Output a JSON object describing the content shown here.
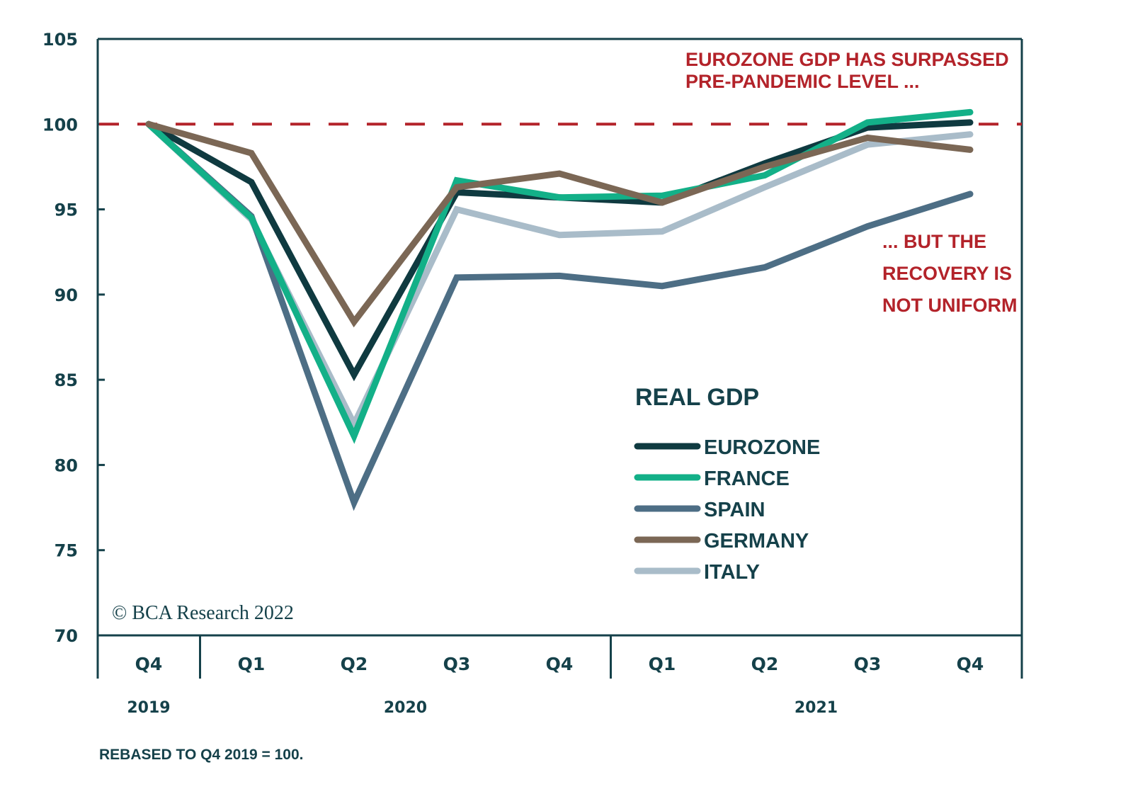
{
  "chart_data": {
    "type": "line",
    "title": "REAL GDP",
    "xlabel": "",
    "ylabel": "",
    "ylim": [
      70,
      105
    ],
    "yticks": [
      70,
      75,
      80,
      85,
      90,
      95,
      100,
      105
    ],
    "grid": false,
    "x": [
      "Q4",
      "Q1",
      "Q2",
      "Q3",
      "Q4",
      "Q1",
      "Q2",
      "Q3",
      "Q4"
    ],
    "years": [
      {
        "label": "2019",
        "from": 0,
        "to": 0
      },
      {
        "label": "2020",
        "from": 1,
        "to": 4
      },
      {
        "label": "2021",
        "from": 5,
        "to": 8
      }
    ],
    "reference_line": {
      "value": 100,
      "style": "dashed",
      "color": "#b3232a"
    },
    "series": [
      {
        "name": "EUROZONE",
        "color": "#0f3a40",
        "values": [
          100,
          96.6,
          85.3,
          96.0,
          95.7,
          95.4,
          97.7,
          99.8,
          100.1
        ]
      },
      {
        "name": "FRANCE",
        "color": "#13b088",
        "values": [
          100,
          94.5,
          81.7,
          96.7,
          95.7,
          95.8,
          97.0,
          100.1,
          100.7
        ]
      },
      {
        "name": "SPAIN",
        "color": "#4d6e85",
        "values": [
          100,
          94.6,
          77.8,
          91.0,
          91.1,
          90.5,
          91.6,
          94.0,
          95.9
        ]
      },
      {
        "name": "GERMANY",
        "color": "#7b6755",
        "values": [
          100,
          98.3,
          88.4,
          96.3,
          97.1,
          95.4,
          97.5,
          99.2,
          98.5
        ]
      },
      {
        "name": "ITALY",
        "color": "#a9bcc9",
        "values": [
          100,
          94.4,
          82.4,
          95.0,
          93.5,
          93.7,
          96.3,
          98.8,
          99.4
        ]
      }
    ],
    "legend_placement": "center-right",
    "annotations": [
      {
        "lines": [
          "EUROZONE GDP HAS SURPASSED",
          "PRE-PANDEMIC LEVEL ..."
        ],
        "position": "top-right"
      },
      {
        "lines": [
          "... BUT THE",
          "RECOVERY IS",
          "NOT UNIFORM"
        ],
        "position": "right"
      }
    ]
  },
  "footer": {
    "copyright": "© BCA Research 2022",
    "note": "REBASED TO Q4 2019 = 100."
  }
}
